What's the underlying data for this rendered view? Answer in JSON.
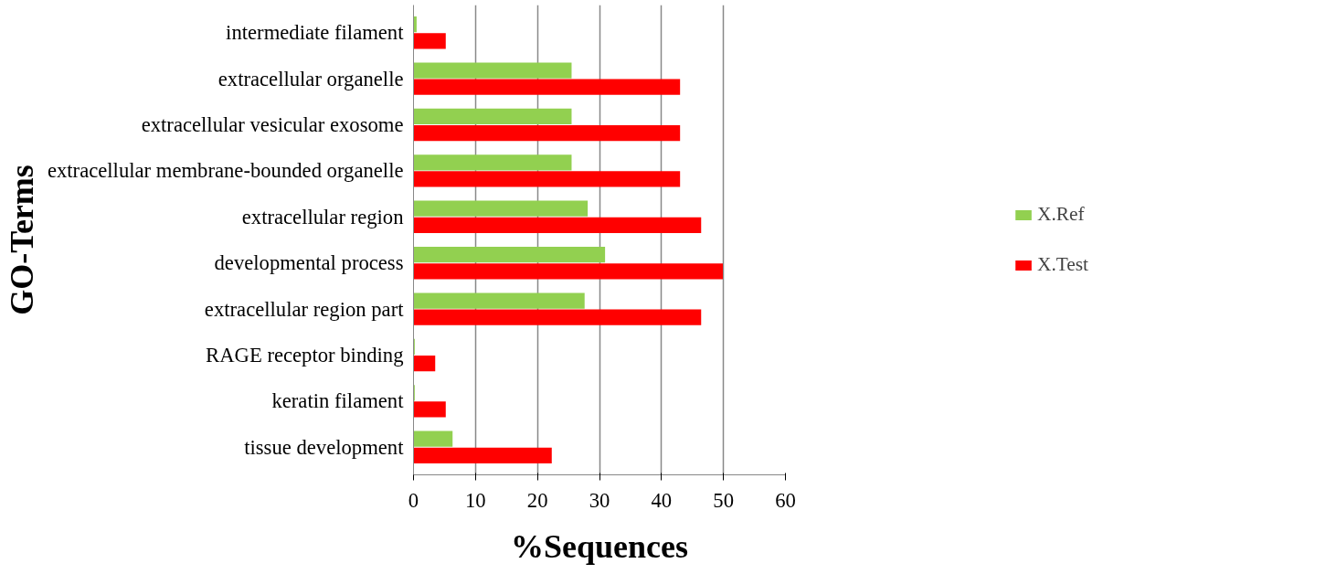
{
  "chart_data": {
    "type": "bar",
    "orientation": "horizontal",
    "xlabel": "%Sequences",
    "ylabel": "GO-Terms",
    "categories": [
      "intermediate filament",
      "extracellular organelle",
      "extracellular vesicular exosome",
      "extracellular membrane-bounded organelle",
      "extracellular region",
      "developmental process",
      "extracellular region part",
      "RAGE receptor binding",
      "keratin filament",
      "tissue development"
    ],
    "series": [
      {
        "name": "X.Ref",
        "color": "#92d050",
        "values": [
          0.5,
          25.5,
          25.5,
          25.5,
          28.1,
          30.9,
          27.6,
          0.2,
          0.2,
          6.3
        ]
      },
      {
        "name": "X.Test",
        "color": "#ff0000",
        "values": [
          5.2,
          43.0,
          43.0,
          43.0,
          46.4,
          49.9,
          46.4,
          3.5,
          5.2,
          22.3
        ]
      }
    ],
    "xlim": [
      0,
      60
    ],
    "xticks": [
      0,
      10,
      20,
      30,
      40,
      50,
      60
    ],
    "grid": "x",
    "legend": "right"
  }
}
